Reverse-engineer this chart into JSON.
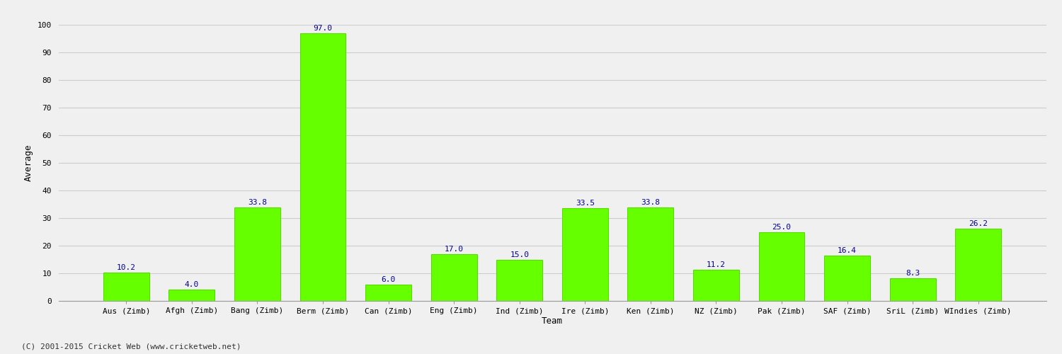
{
  "categories": [
    "Aus (Zimb)",
    "Afgh (Zimb)",
    "Bang (Zimb)",
    "Berm (Zimb)",
    "Can (Zimb)",
    "Eng (Zimb)",
    "Ind (Zimb)",
    "Ire (Zimb)",
    "Ken (Zimb)",
    "NZ (Zimb)",
    "Pak (Zimb)",
    "SAF (Zimb)",
    "SriL (Zimb)",
    "WIndies (Zimb)"
  ],
  "values": [
    10.2,
    4.0,
    33.8,
    97.0,
    6.0,
    17.0,
    15.0,
    33.5,
    33.8,
    11.2,
    25.0,
    16.4,
    8.3,
    26.2
  ],
  "bar_color": "#66ff00",
  "bar_edge_color": "#55dd00",
  "label_color": "#000099",
  "ylabel": "Average",
  "xlabel": "Team",
  "ylim": [
    0,
    100
  ],
  "yticks": [
    0,
    10,
    20,
    30,
    40,
    50,
    60,
    70,
    80,
    90,
    100
  ],
  "grid_color": "#cccccc",
  "bg_color": "#f0f0f0",
  "footer": "(C) 2001-2015 Cricket Web (www.cricketweb.net)",
  "title_fontsize": 11,
  "label_fontsize": 9,
  "tick_fontsize": 8,
  "footer_fontsize": 8,
  "value_fontsize": 8
}
